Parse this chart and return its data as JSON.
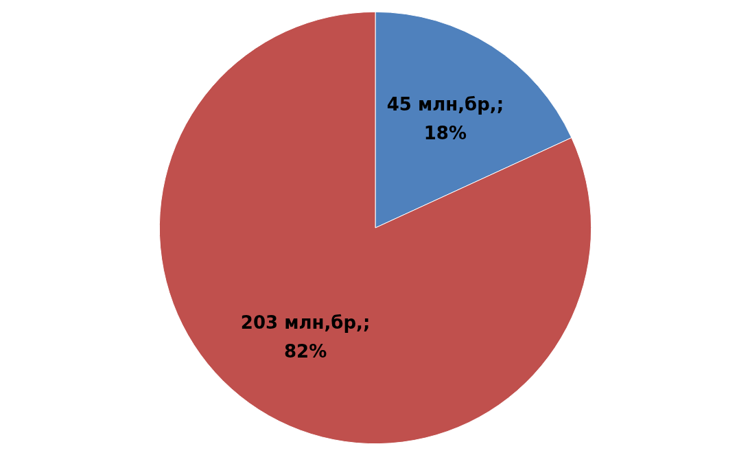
{
  "chart_data": {
    "type": "pie",
    "categories": [
      null,
      null
    ],
    "values": [
      45,
      203
    ],
    "colors": [
      "#4f81bd",
      "#c0504d"
    ],
    "value_labels": [
      "45 млн,бр,;\n18%",
      "203 млн,бр,;\n82%"
    ]
  }
}
